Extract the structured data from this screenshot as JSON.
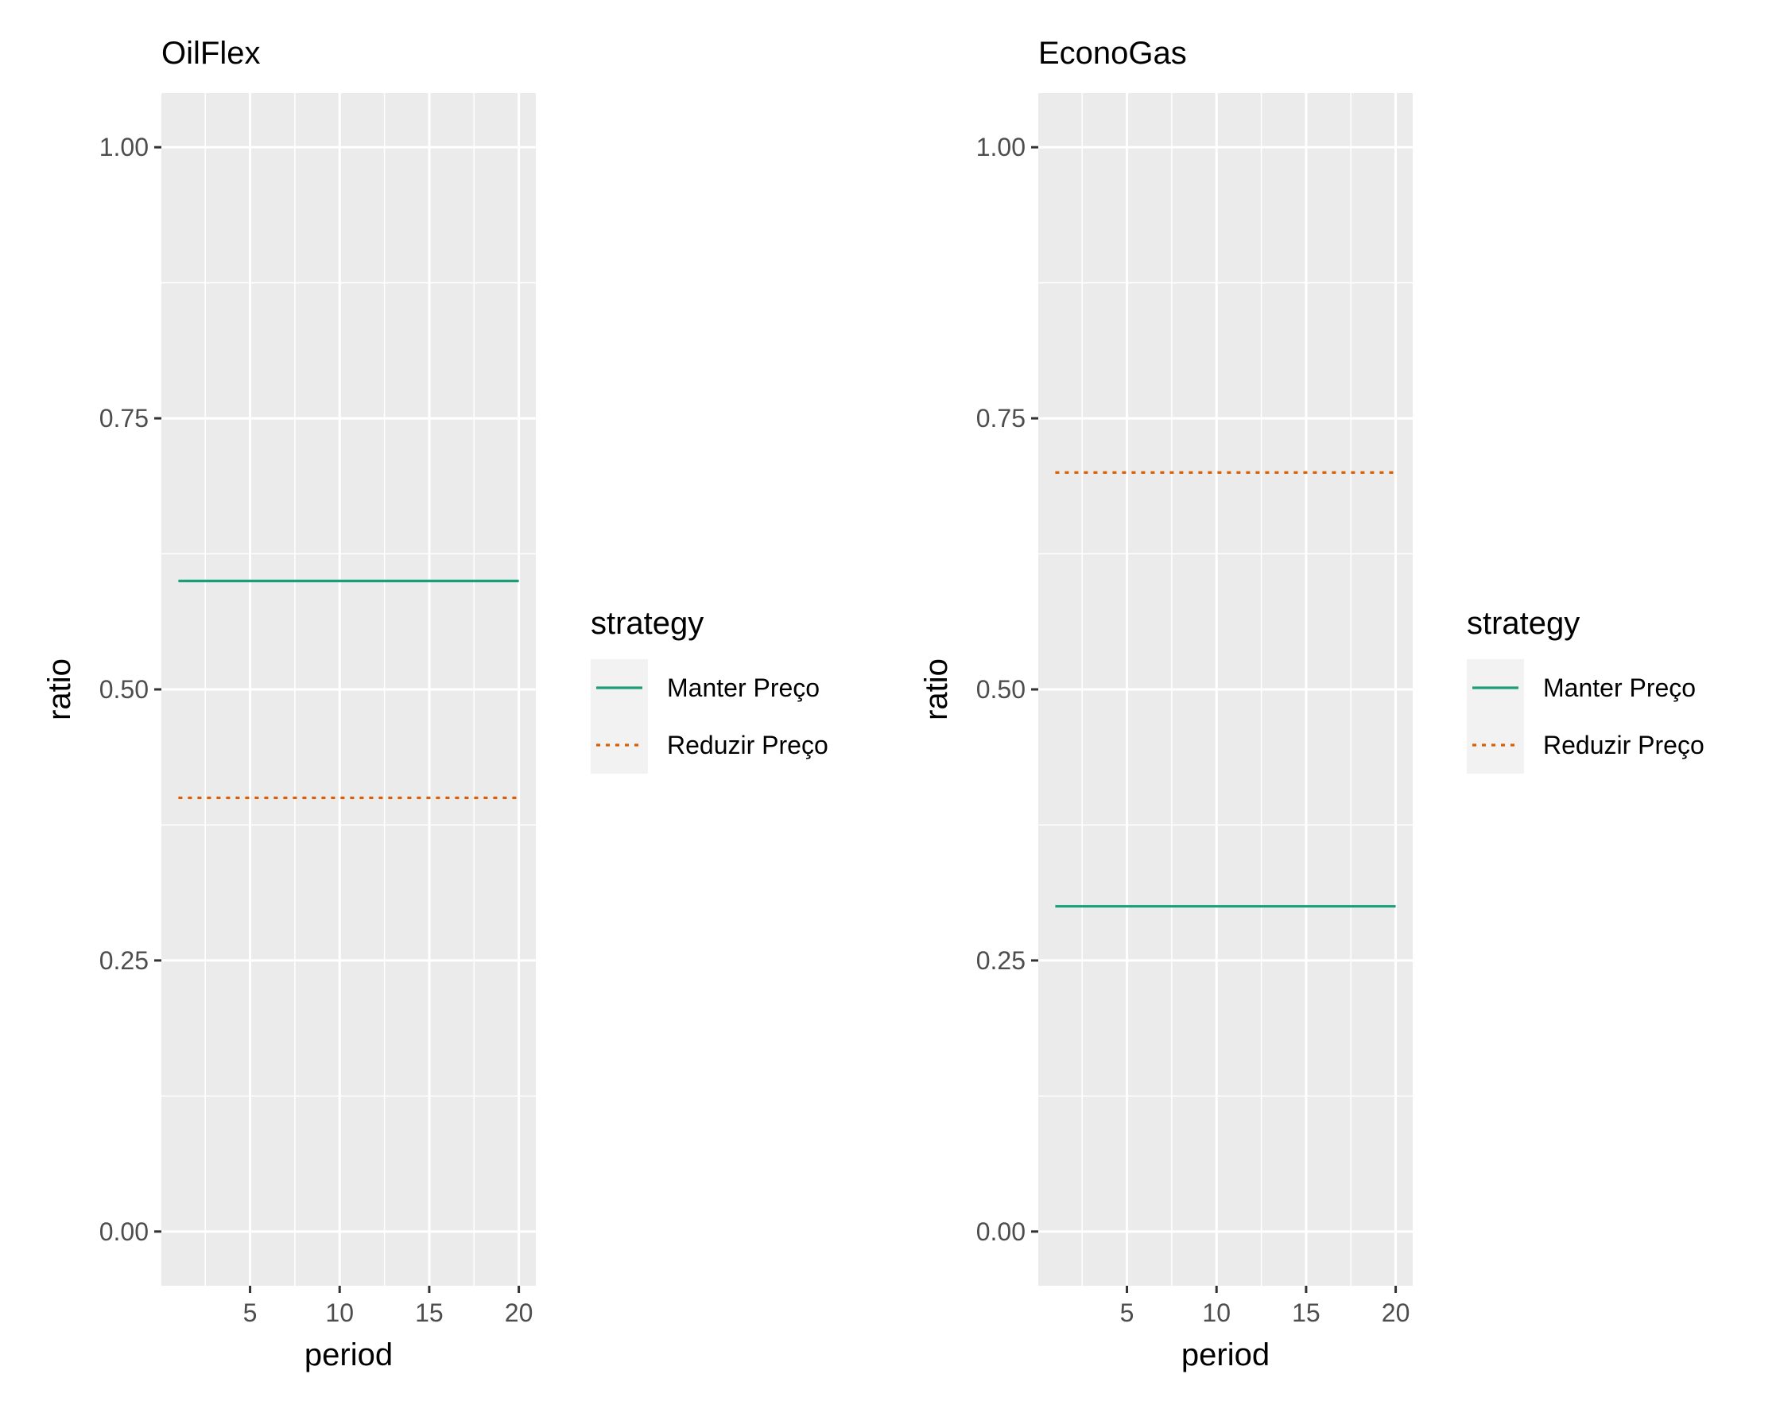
{
  "chart_data": [
    {
      "type": "line",
      "title": "OilFlex",
      "xlabel": "period",
      "ylabel": "ratio",
      "xlim": [
        1,
        20
      ],
      "ylim": [
        0,
        1
      ],
      "x_ticks": [
        5,
        10,
        15,
        20
      ],
      "x_tick_labels": [
        "5",
        "10",
        "15",
        "20"
      ],
      "y_ticks": [
        0,
        0.25,
        0.5,
        0.75,
        1
      ],
      "y_tick_labels": [
        "0.00",
        "0.25",
        "0.50",
        "0.75",
        "1.00"
      ],
      "grid": true,
      "legend_placement": "right",
      "legend_title": "strategy",
      "series": [
        {
          "name": "Manter Preço",
          "color": "#1b9e77",
          "dash": "solid",
          "x": [
            1,
            20
          ],
          "y": [
            0.6,
            0.6
          ]
        },
        {
          "name": "Reduzir Preço",
          "color": "#d95f02",
          "dash": "dotted",
          "x": [
            1,
            20
          ],
          "y": [
            0.4,
            0.4
          ]
        }
      ]
    },
    {
      "type": "line",
      "title": "EconoGas",
      "xlabel": "period",
      "ylabel": "ratio",
      "xlim": [
        1,
        20
      ],
      "ylim": [
        0,
        1
      ],
      "x_ticks": [
        5,
        10,
        15,
        20
      ],
      "x_tick_labels": [
        "5",
        "10",
        "15",
        "20"
      ],
      "y_ticks": [
        0,
        0.25,
        0.5,
        0.75,
        1
      ],
      "y_tick_labels": [
        "0.00",
        "0.25",
        "0.50",
        "0.75",
        "1.00"
      ],
      "grid": true,
      "legend_placement": "right",
      "legend_title": "strategy",
      "series": [
        {
          "name": "Manter Preço",
          "color": "#1b9e77",
          "dash": "solid",
          "x": [
            1,
            20
          ],
          "y": [
            0.3,
            0.3
          ]
        },
        {
          "name": "Reduzir Preço",
          "color": "#d95f02",
          "dash": "dotted",
          "x": [
            1,
            20
          ],
          "y": [
            0.7,
            0.7
          ]
        }
      ]
    }
  ]
}
